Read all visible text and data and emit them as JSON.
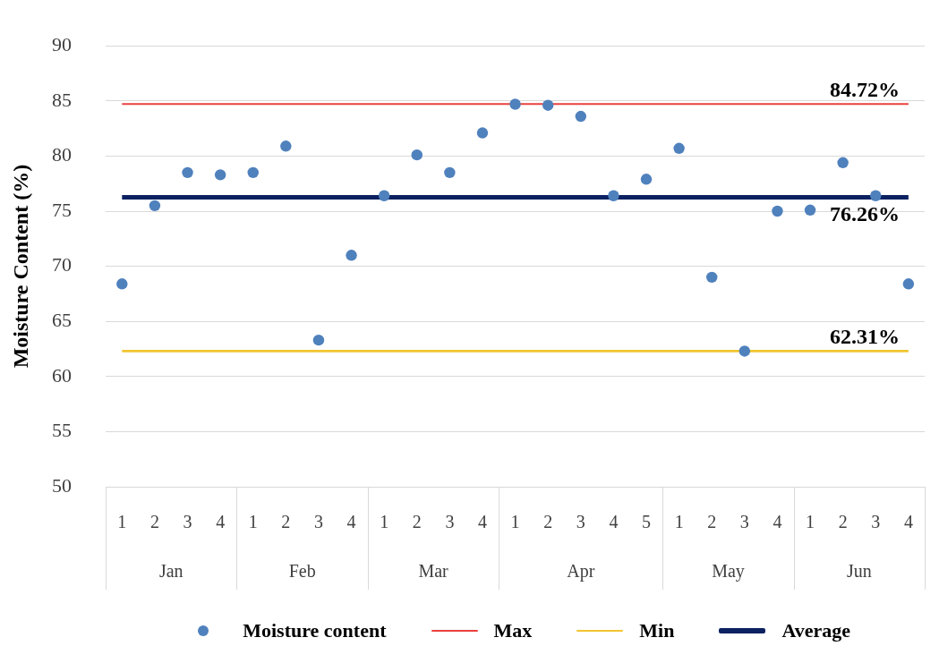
{
  "chart_data": {
    "type": "scatter",
    "ylabel": "Moisture Content (%)",
    "categories": [
      "1",
      "2",
      "3",
      "4",
      "1",
      "2",
      "3",
      "4",
      "1",
      "2",
      "3",
      "4",
      "1",
      "2",
      "3",
      "4",
      "5",
      "1",
      "2",
      "3",
      "4",
      "1",
      "2",
      "3",
      "4"
    ],
    "annotations": [
      "Jan",
      "Feb",
      "Mar",
      "Apr",
      "May",
      "Jun"
    ],
    "series": [
      {
        "name": "Moisture content",
        "color": "#4f81bd",
        "values": [
          68.4,
          75.5,
          78.5,
          78.3,
          78.5,
          80.9,
          63.3,
          71.0,
          76.4,
          80.1,
          78.5,
          82.1,
          84.7,
          84.6,
          83.6,
          76.4,
          77.9,
          80.7,
          69.0,
          62.3,
          75.0,
          75.1,
          79.4,
          76.4,
          68.4
        ]
      },
      {
        "name": "Max",
        "type": "line",
        "marker": "none",
        "color": "#e8403f",
        "values": [
          84.72,
          84.72,
          84.72,
          84.72,
          84.72,
          84.72,
          84.72,
          84.72,
          84.72,
          84.72,
          84.72,
          84.72,
          84.72,
          84.72,
          84.72,
          84.72,
          84.72,
          84.72,
          84.72,
          84.72,
          84.72,
          84.72,
          84.72,
          84.72,
          84.72
        ],
        "value_labels": [
          null,
          null,
          null,
          null,
          null,
          null,
          null,
          null,
          null,
          null,
          null,
          null,
          null,
          null,
          null,
          null,
          null,
          null,
          null,
          null,
          null,
          null,
          null,
          null,
          "84.72%"
        ]
      },
      {
        "name": "Min",
        "type": "line",
        "marker": "none",
        "color": "#f2c530",
        "values": [
          62.31,
          62.31,
          62.31,
          62.31,
          62.31,
          62.31,
          62.31,
          62.31,
          62.31,
          62.31,
          62.31,
          62.31,
          62.31,
          62.31,
          62.31,
          62.31,
          62.31,
          62.31,
          62.31,
          62.31,
          62.31,
          62.31,
          62.31,
          62.31,
          62.31
        ],
        "value_labels": [
          null,
          null,
          null,
          null,
          null,
          null,
          null,
          null,
          null,
          null,
          null,
          null,
          null,
          null,
          null,
          null,
          null,
          null,
          null,
          null,
          null,
          null,
          null,
          null,
          "62.31%"
        ]
      },
      {
        "name": "Average",
        "type": "line",
        "marker": "none",
        "color": "#0b2161",
        "values": [
          76.26,
          76.26,
          76.26,
          76.26,
          76.26,
          76.26,
          76.26,
          76.26,
          76.26,
          76.26,
          76.26,
          76.26,
          76.26,
          76.26,
          76.26,
          76.26,
          76.26,
          76.26,
          76.26,
          76.26,
          76.26,
          76.26,
          76.26,
          76.26,
          76.26
        ],
        "value_labels": [
          null,
          null,
          null,
          null,
          null,
          null,
          null,
          null,
          null,
          null,
          null,
          null,
          null,
          null,
          null,
          null,
          null,
          null,
          null,
          null,
          null,
          null,
          null,
          null,
          "76.26%"
        ]
      }
    ],
    "ylim": [
      50,
      90
    ],
    "yticks": [
      50,
      55,
      60,
      65,
      70,
      75,
      80,
      85,
      90
    ],
    "grid": "y",
    "legend": "bottom",
    "marker": "circle"
  }
}
